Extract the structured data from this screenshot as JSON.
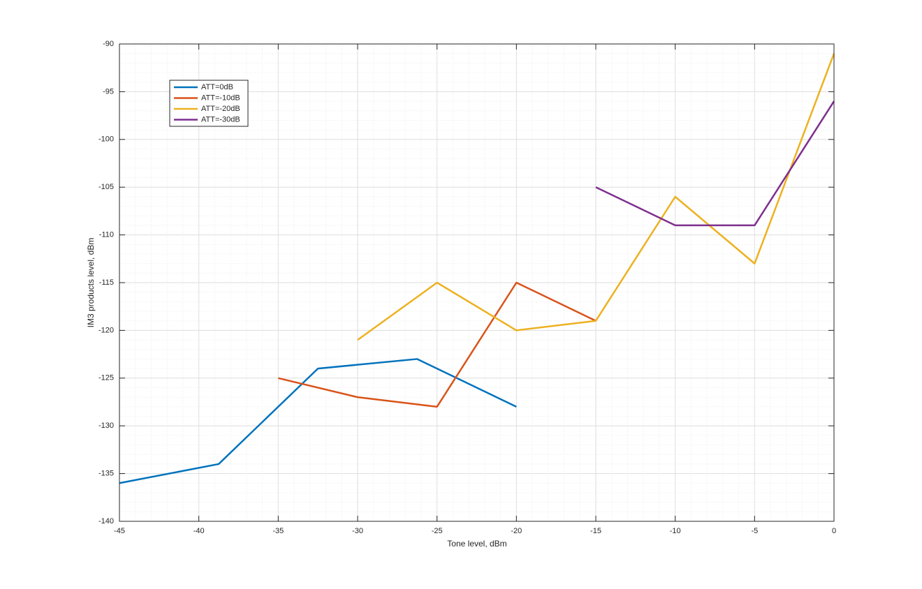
{
  "chart_data": {
    "type": "line",
    "xlabel": "Tone level, dBm",
    "ylabel": "IM3 products level, dBm",
    "xlim": [
      -45,
      0
    ],
    "xticks": [
      -45,
      -40,
      -35,
      -30,
      -25,
      -20,
      -15,
      -10,
      -5,
      0
    ],
    "ylim": [
      -140,
      -90
    ],
    "yticks": [
      -140,
      -135,
      -130,
      -125,
      -120,
      -115,
      -110,
      -105,
      -100,
      -95,
      -90
    ],
    "grid": true,
    "minor_grid": true,
    "legend": "northwest",
    "series": [
      {
        "name": "ATT=0dB",
        "color": "#0072BD",
        "x": [
          -45,
          -38.75,
          -32.5,
          -26.25,
          -20
        ],
        "values": [
          -136,
          -134,
          -124,
          -123,
          -128
        ]
      },
      {
        "name": "ATT=-10dB",
        "color": "#D95319",
        "x": [
          -35,
          -30,
          -25,
          -20,
          -15
        ],
        "values": [
          -125,
          -127,
          -128,
          -115,
          -119
        ]
      },
      {
        "name": "ATT=-20dB",
        "color": "#EDB120",
        "x": [
          -30,
          -25,
          -20,
          -15,
          -10,
          -5,
          0
        ],
        "values": [
          -121,
          -115,
          -120,
          -119,
          -106,
          -113,
          -91
        ]
      },
      {
        "name": "ATT=-30dB",
        "color": "#7E2F8E",
        "x": [
          -15,
          -10,
          -5,
          0
        ],
        "values": [
          -105,
          -109,
          -109,
          -96
        ]
      }
    ]
  }
}
